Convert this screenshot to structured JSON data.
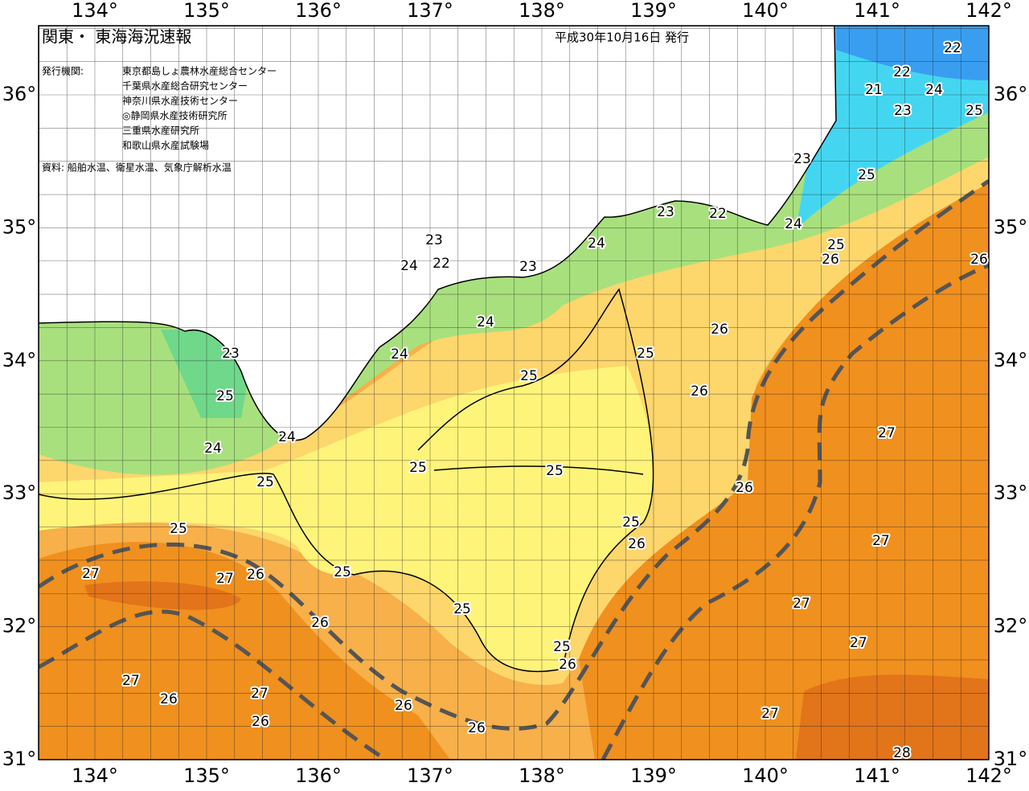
{
  "header": {
    "title": "関東・ 東海海況速報",
    "date": "平成30年10月16日 発行"
  },
  "agencies": {
    "label": "発行機関:",
    "list": [
      "東京都島しょ農林水産総合センター",
      "千葉県水産総合研究センター",
      "神奈川県水産技術センター",
      "◎静岡県水産技術研究所",
      "三重県水産研究所",
      "和歌山県水産試験場"
    ]
  },
  "source": "資料: 船舶水温、衛星水温、気象庁解析水温",
  "axes": {
    "lon": [
      "134°",
      "135°",
      "136°",
      "137°",
      "138°",
      "139°",
      "140°",
      "141°",
      "142°"
    ],
    "lat": [
      "36°",
      "35°",
      "34°",
      "33°",
      "32°",
      "31°"
    ]
  },
  "contour_labels": [
    "22",
    "22",
    "21",
    "24",
    "23",
    "25",
    "23",
    "25",
    "23",
    "22",
    "24",
    "23",
    "24",
    "25",
    "24",
    "22",
    "23",
    "26",
    "26",
    "24",
    "26",
    "23",
    "24",
    "25",
    "25",
    "26",
    "25",
    "24",
    "24",
    "27",
    "25",
    "25",
    "25",
    "26",
    "25",
    "25",
    "26",
    "27",
    "27",
    "27",
    "26",
    "25",
    "27",
    "25",
    "26",
    "27",
    "25",
    "26",
    "27",
    "27",
    "26",
    "26",
    "27",
    "26",
    "26",
    "28"
  ]
}
